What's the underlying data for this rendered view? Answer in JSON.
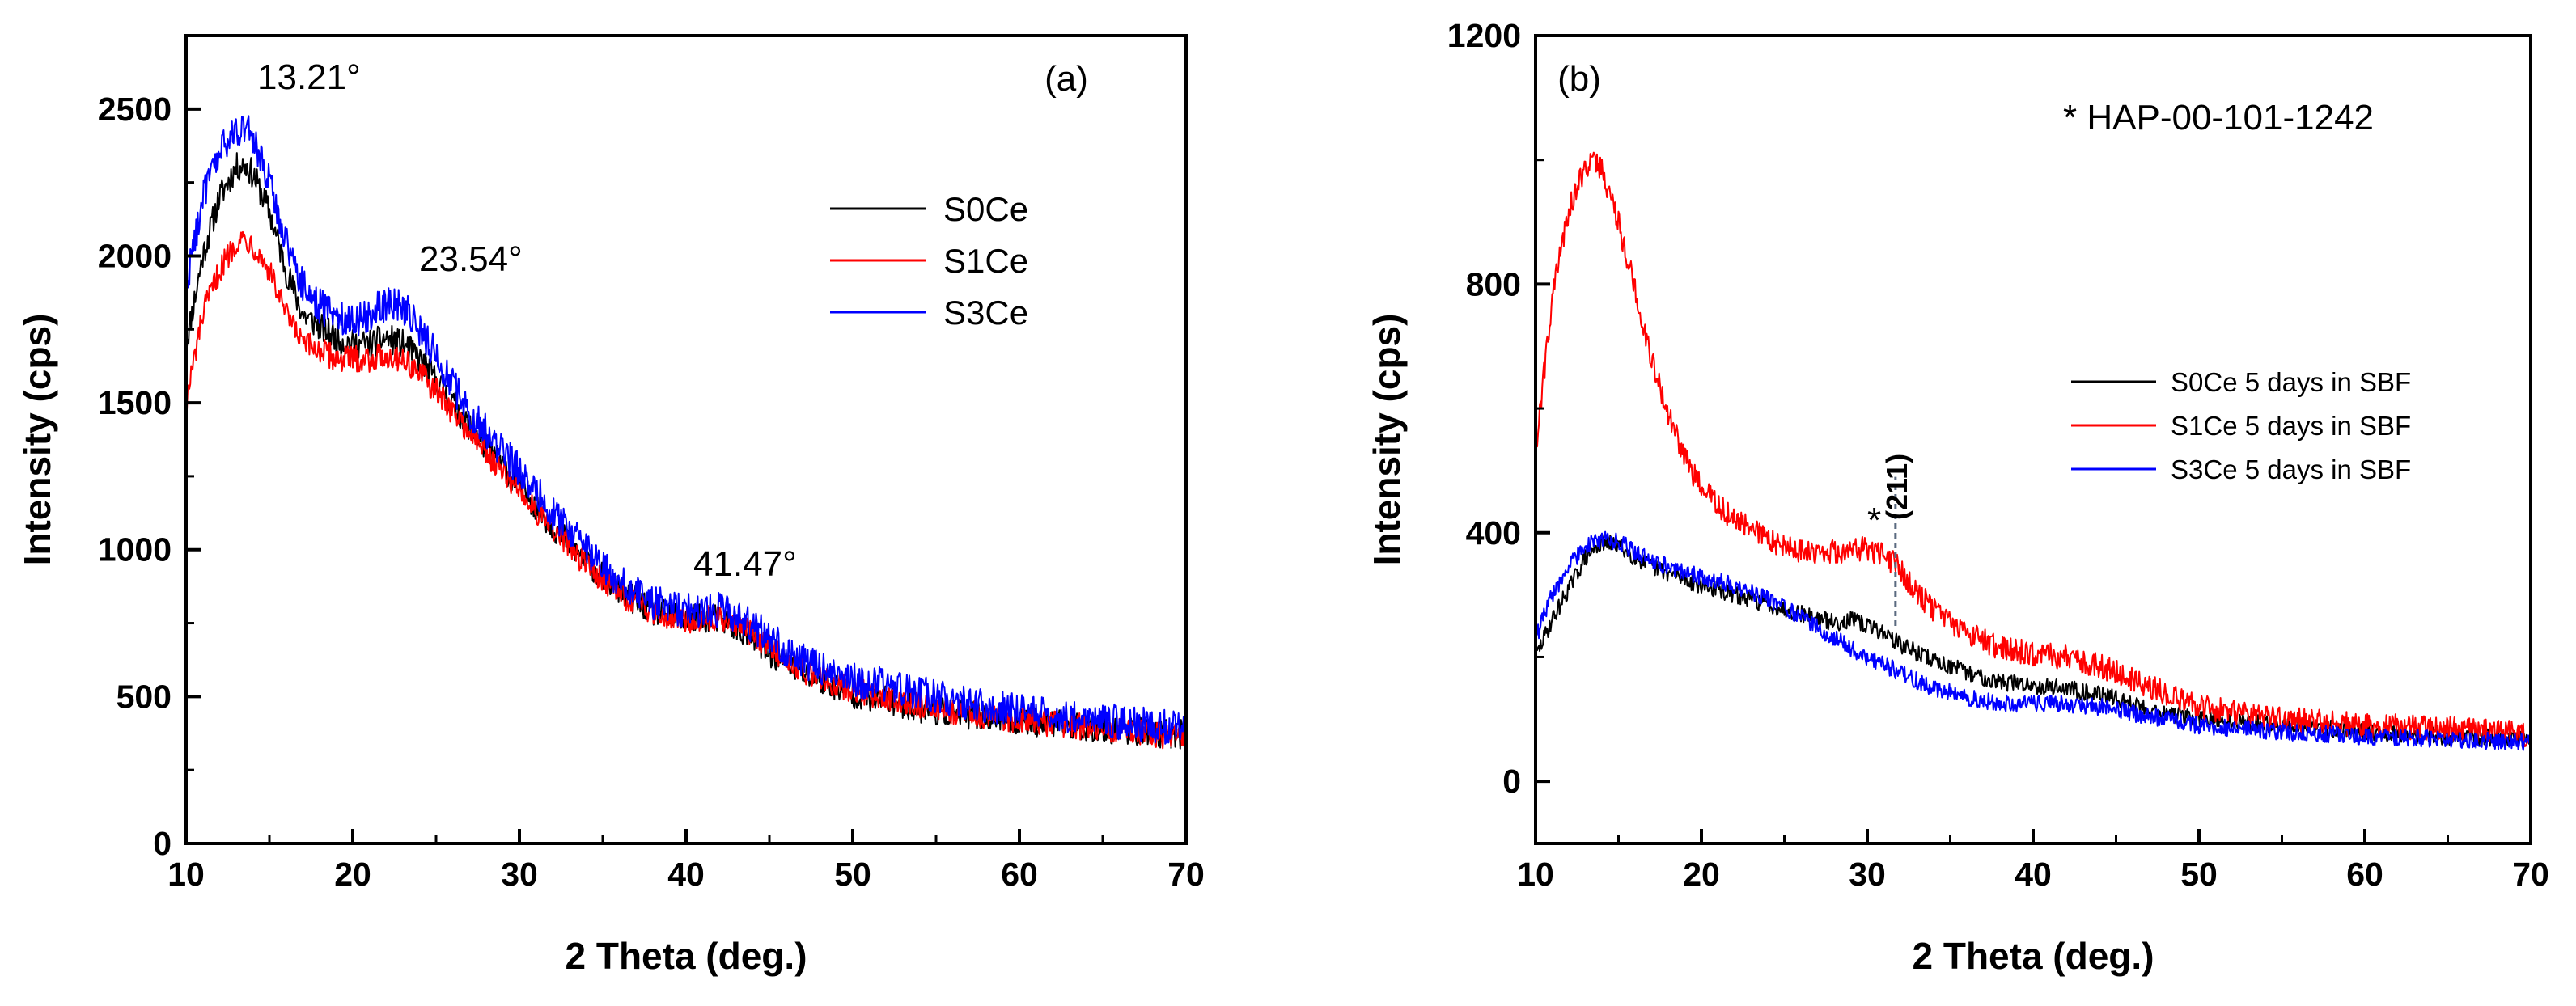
{
  "chart_data": [
    {
      "type": "line",
      "panel_label": "(a)",
      "xlabel": "2 Theta (deg.)",
      "ylabel": "Intensity (cps)",
      "xlim": [
        10,
        70
      ],
      "ylim": [
        0,
        2750
      ],
      "xticks": [
        "10",
        "20",
        "30",
        "40",
        "50",
        "60",
        "70"
      ],
      "yticks": [
        "0",
        "500",
        "1000",
        "1500",
        "2000",
        "2500"
      ],
      "legend_position": "upper-right",
      "annotations": [
        {
          "text": "13.21°",
          "x": 13.21,
          "y": 2620
        },
        {
          "text": "23.54°",
          "x": 23.54,
          "y": 1950
        },
        {
          "text": "41.47°",
          "x": 41.47,
          "y": 920
        }
      ],
      "series": [
        {
          "name": "S0Ce",
          "color": "#000000",
          "noise": 50,
          "x": [
            10,
            11,
            12,
            13,
            13.5,
            14,
            15,
            16,
            17,
            18,
            19,
            20,
            21,
            22,
            23,
            24,
            25,
            26,
            27,
            28,
            30,
            32,
            34,
            36,
            38,
            40,
            41.5,
            43,
            45,
            47,
            50,
            55,
            60,
            65,
            70
          ],
          "y": [
            1700,
            2000,
            2200,
            2300,
            2310,
            2280,
            2150,
            1950,
            1800,
            1760,
            1720,
            1700,
            1700,
            1720,
            1700,
            1650,
            1580,
            1500,
            1420,
            1350,
            1220,
            1080,
            960,
            860,
            790,
            760,
            770,
            740,
            650,
            580,
            510,
            450,
            420,
            390,
            370
          ]
        },
        {
          "name": "S1Ce",
          "color": "#ff0000",
          "noise": 45,
          "x": [
            10,
            11,
            12,
            13,
            13.5,
            14,
            15,
            16,
            17,
            18,
            19,
            20,
            21,
            22,
            23,
            24,
            25,
            26,
            27,
            28,
            30,
            32,
            34,
            36,
            38,
            40,
            41.5,
            43,
            45,
            47,
            50,
            55,
            60,
            65,
            70
          ],
          "y": [
            1500,
            1800,
            1950,
            2050,
            2060,
            2040,
            1950,
            1800,
            1700,
            1680,
            1650,
            1650,
            1650,
            1660,
            1650,
            1600,
            1540,
            1470,
            1400,
            1330,
            1200,
            1070,
            950,
            850,
            790,
            760,
            770,
            750,
            670,
            590,
            520,
            460,
            420,
            390,
            360
          ]
        },
        {
          "name": "S3Ce",
          "color": "#0000ff",
          "noise": 60,
          "x": [
            10,
            11,
            12,
            13,
            13.5,
            14,
            15,
            16,
            17,
            18,
            19,
            20,
            21,
            22,
            23,
            24,
            25,
            26,
            27,
            28,
            30,
            32,
            34,
            36,
            38,
            40,
            41.5,
            43,
            45,
            47,
            50,
            55,
            60,
            65,
            70
          ],
          "y": [
            1900,
            2200,
            2350,
            2430,
            2440,
            2400,
            2250,
            2050,
            1900,
            1830,
            1800,
            1780,
            1800,
            1840,
            1830,
            1750,
            1660,
            1560,
            1470,
            1400,
            1270,
            1130,
            1000,
            890,
            820,
            790,
            800,
            780,
            700,
            620,
            560,
            500,
            450,
            420,
            390
          ]
        }
      ]
    },
    {
      "type": "line",
      "panel_label": "(b)",
      "xlabel": "2 Theta (deg.)",
      "ylabel": "Intensity (cps)",
      "xlim": [
        10,
        70
      ],
      "ylim": [
        -100,
        1200
      ],
      "xticks": [
        "10",
        "20",
        "30",
        "40",
        "50",
        "60",
        "70"
      ],
      "yticks": [
        "0",
        "400",
        "800",
        "1200"
      ],
      "legend_position": "right",
      "reference_text": "*  HAP-00-101-1242",
      "annotations": [
        {
          "text": "(211)",
          "x": 31.7,
          "y": 500
        },
        {
          "text": "*",
          "x": 30.4,
          "y": 410
        }
      ],
      "marker_line": {
        "x": 31.7,
        "y_from": 250,
        "y_to": 490
      },
      "series": [
        {
          "name": "S0Ce 5 days in SBF",
          "color": "#000000",
          "noise": 14,
          "x": [
            10,
            11,
            12,
            13,
            14,
            15,
            16,
            17,
            18,
            20,
            22,
            24,
            26,
            28,
            29,
            30,
            31,
            32,
            34,
            36,
            38,
            40,
            42,
            44,
            46,
            48,
            50,
            55,
            60,
            65,
            70
          ],
          "y": [
            200,
            260,
            310,
            360,
            385,
            380,
            360,
            345,
            335,
            315,
            300,
            285,
            270,
            255,
            260,
            250,
            240,
            220,
            195,
            175,
            160,
            155,
            150,
            140,
            125,
            110,
            100,
            90,
            80,
            72,
            68
          ]
        },
        {
          "name": "S1Ce 5 days in SBF",
          "color": "#ff0000",
          "noise": 20,
          "x": [
            10,
            11,
            12,
            13,
            13.5,
            14,
            15,
            16,
            17,
            18,
            19,
            20,
            22,
            24,
            26,
            28,
            30,
            31,
            32,
            33,
            34,
            36,
            38,
            40,
            42,
            44,
            46,
            48,
            50,
            55,
            60,
            65,
            70
          ],
          "y": [
            530,
            780,
            920,
            990,
            1000,
            985,
            900,
            790,
            680,
            590,
            520,
            470,
            420,
            390,
            370,
            370,
            375,
            365,
            340,
            305,
            275,
            240,
            215,
            205,
            200,
            185,
            165,
            140,
            120,
            100,
            90,
            85,
            75
          ]
        },
        {
          "name": "S3Ce 5 days in SBF",
          "color": "#0000ff",
          "noise": 14,
          "x": [
            10,
            11,
            12,
            13,
            14,
            15,
            16,
            17,
            18,
            20,
            22,
            24,
            26,
            28,
            30,
            32,
            34,
            36,
            38,
            40,
            42,
            44,
            46,
            48,
            50,
            55,
            60,
            65,
            70
          ],
          "y": [
            230,
            300,
            345,
            380,
            390,
            385,
            370,
            355,
            345,
            330,
            315,
            295,
            265,
            230,
            200,
            175,
            150,
            135,
            125,
            125,
            125,
            120,
            110,
            100,
            90,
            80,
            72,
            68,
            62
          ]
        }
      ]
    }
  ]
}
